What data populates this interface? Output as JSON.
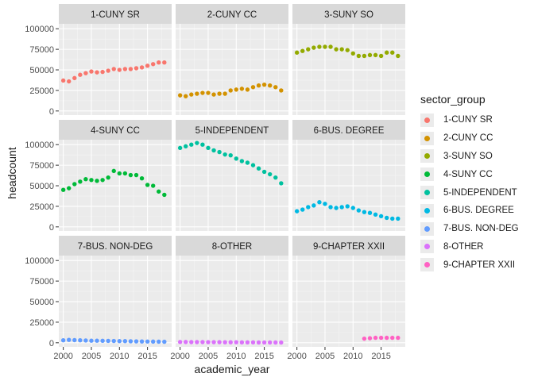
{
  "chart_data": {
    "type": "scatter",
    "facet_layout": "3x3 grid, shared axes",
    "xlabel": "academic_year",
    "ylabel": "headcount",
    "xlim": [
      1999.2,
      2019.3
    ],
    "ylim": [
      -5000,
      106000
    ],
    "x_ticks": [
      2000,
      2005,
      2010,
      2015
    ],
    "y_ticks": [
      0,
      25000,
      50000,
      75000,
      100000
    ],
    "grid": true,
    "legend": {
      "title": "sector_group",
      "position": "right",
      "entries": [
        "1-CUNY SR",
        "2-CUNY CC",
        "3-SUNY SO",
        "4-SUNY CC",
        "5-INDEPENDENT",
        "6-BUS. DEGREE",
        "7-BUS. NON-DEG",
        "8-OTHER",
        "9-CHAPTER XXII"
      ]
    },
    "series": [
      {
        "name": "1-CUNY SR",
        "color": "#F8766D",
        "x": [
          2000,
          2001,
          2002,
          2003,
          2004,
          2005,
          2006,
          2007,
          2008,
          2009,
          2010,
          2011,
          2012,
          2013,
          2014,
          2015,
          2016,
          2017,
          2018
        ],
        "values": [
          37000,
          36000,
          40000,
          44000,
          46000,
          48000,
          47000,
          47500,
          49000,
          51000,
          50000,
          51000,
          51000,
          52000,
          53000,
          55000,
          57000,
          59000,
          59000
        ]
      },
      {
        "name": "2-CUNY CC",
        "color": "#D39200",
        "x": [
          2000,
          2001,
          2002,
          2003,
          2004,
          2005,
          2006,
          2007,
          2008,
          2009,
          2010,
          2011,
          2012,
          2013,
          2014,
          2015,
          2016,
          2017,
          2018
        ],
        "values": [
          19000,
          18000,
          20000,
          21000,
          22000,
          22000,
          20000,
          21000,
          21000,
          25000,
          26000,
          27000,
          26000,
          29000,
          31000,
          32000,
          31000,
          29000,
          25000
        ]
      },
      {
        "name": "3-SUNY SO",
        "color": "#93AA00",
        "x": [
          2000,
          2001,
          2002,
          2003,
          2004,
          2005,
          2006,
          2007,
          2008,
          2009,
          2010,
          2011,
          2012,
          2013,
          2014,
          2015,
          2016,
          2017,
          2018
        ],
        "values": [
          71000,
          73000,
          75000,
          77000,
          78000,
          78000,
          78000,
          75000,
          75000,
          74000,
          70000,
          67000,
          67000,
          68000,
          68000,
          67000,
          71000,
          71000,
          67000
        ]
      },
      {
        "name": "4-SUNY CC",
        "color": "#00BA38",
        "x": [
          2000,
          2001,
          2002,
          2003,
          2004,
          2005,
          2006,
          2007,
          2008,
          2009,
          2010,
          2011,
          2012,
          2013,
          2014,
          2015,
          2016,
          2017,
          2018
        ],
        "values": [
          45000,
          47000,
          52000,
          55000,
          58000,
          57000,
          56000,
          57000,
          60000,
          68000,
          65000,
          65000,
          63000,
          63000,
          59000,
          51000,
          50000,
          43000,
          39000
        ]
      },
      {
        "name": "5-INDEPENDENT",
        "color": "#00C19F",
        "x": [
          2000,
          2001,
          2002,
          2003,
          2004,
          2005,
          2006,
          2007,
          2008,
          2009,
          2010,
          2011,
          2012,
          2013,
          2014,
          2015,
          2016,
          2017,
          2018
        ],
        "values": [
          96000,
          98000,
          100000,
          102000,
          100000,
          96000,
          93000,
          91000,
          88000,
          87000,
          83000,
          80000,
          78000,
          75000,
          71000,
          67000,
          64000,
          60000,
          53000
        ]
      },
      {
        "name": "6-BUS. DEGREE",
        "color": "#00B9E3",
        "x": [
          2000,
          2001,
          2002,
          2003,
          2004,
          2005,
          2006,
          2007,
          2008,
          2009,
          2010,
          2011,
          2012,
          2013,
          2014,
          2015,
          2016,
          2017,
          2018
        ],
        "values": [
          19000,
          21000,
          24000,
          26000,
          30000,
          28000,
          24000,
          23000,
          24000,
          25000,
          23000,
          20000,
          18000,
          17000,
          15000,
          13000,
          11000,
          10000,
          10000
        ]
      },
      {
        "name": "7-BUS. NON-DEG",
        "color": "#619CFF",
        "x": [
          2000,
          2001,
          2002,
          2003,
          2004,
          2005,
          2006,
          2007,
          2008,
          2009,
          2010,
          2011,
          2012,
          2013,
          2014,
          2015,
          2016,
          2017,
          2018
        ],
        "values": [
          3000,
          3500,
          3200,
          3000,
          2800,
          2500,
          2500,
          2400,
          2300,
          2200,
          2000,
          2000,
          1800,
          1700,
          1600,
          1500,
          1400,
          1300,
          1200
        ]
      },
      {
        "name": "8-OTHER",
        "color": "#DB72FB",
        "x": [
          2000,
          2001,
          2002,
          2003,
          2004,
          2005,
          2006,
          2007,
          2008,
          2009,
          2010,
          2011,
          2012,
          2013,
          2014,
          2015,
          2016,
          2017,
          2018
        ],
        "values": [
          900,
          900,
          800,
          800,
          800,
          700,
          700,
          700,
          600,
          600,
          600,
          500,
          500,
          500,
          400,
          400,
          400,
          300,
          300
        ]
      },
      {
        "name": "9-CHAPTER XXII",
        "color": "#FF61C3",
        "x": [
          2012,
          2013,
          2014,
          2015,
          2016,
          2017,
          2018
        ],
        "values": [
          5000,
          5500,
          6000,
          6000,
          6000,
          6000,
          6000
        ]
      }
    ]
  }
}
